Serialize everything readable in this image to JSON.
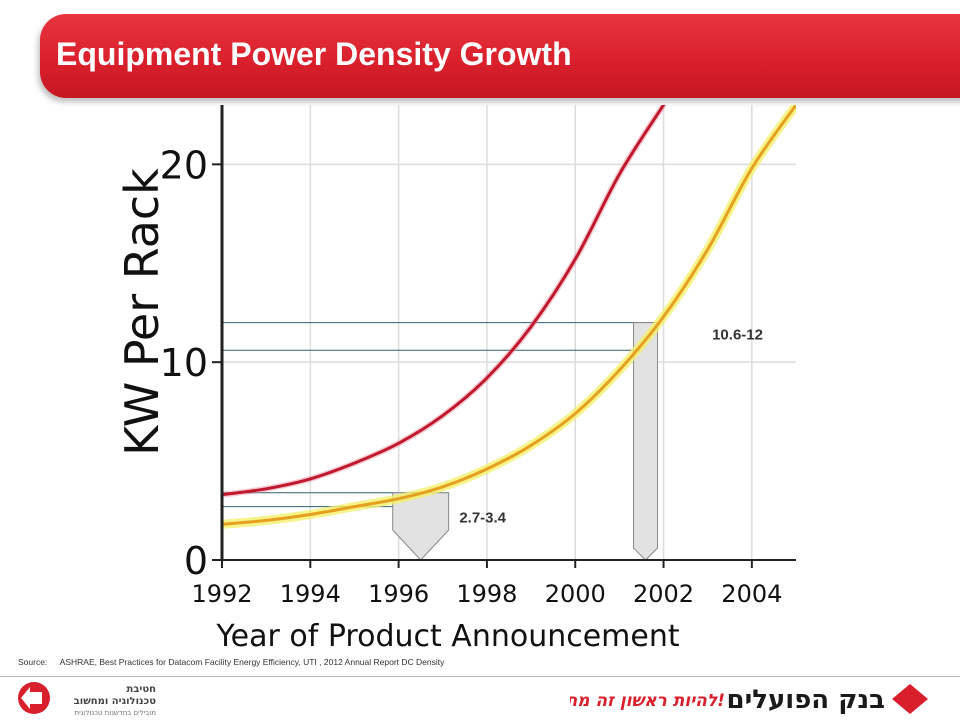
{
  "title": "Equipment Power Density Growth",
  "source": {
    "label": "Source:",
    "text": "ASHRAE, Best Practices for Datacom Facility Energy Efficiency, UTI , 2012 Annual Report DC Density"
  },
  "logos": {
    "left_line1": "חטיבת",
    "left_line2": "טכנולוגיה ומחשוב",
    "left_line3": "מובילים בחדשנות טכנולוגית",
    "right_slogan": "להיות ראשון זה מחייב!",
    "right_name": "בנק הפועלים"
  },
  "colors": {
    "brand_red": "#d81f2b",
    "series_upper": "#c0182e",
    "series_lower": "#e6a020",
    "lower_glow": "#f4f06a",
    "marker": "#33606f"
  },
  "chart_data": {
    "type": "line",
    "title": "",
    "xlabel": "Year of Product Announcement",
    "ylabel": "KW Per Rack",
    "xlim": [
      1992,
      2005
    ],
    "ylim": [
      0,
      23
    ],
    "xticks": [
      1992,
      1994,
      1996,
      1998,
      2000,
      2002,
      2004
    ],
    "yticks": [
      0,
      10,
      20
    ],
    "grid": true,
    "series": [
      {
        "x": [
          1992,
          1993,
          1994,
          1995,
          1996,
          1997,
          1998,
          1999,
          2000,
          2001,
          2002
        ],
        "values": [
          3.3,
          3.6,
          4.1,
          4.9,
          5.9,
          7.3,
          9.2,
          11.8,
          15.2,
          19.5,
          23
        ]
      },
      {
        "x": [
          1992,
          1993,
          1994,
          1995,
          1996,
          1997,
          1998,
          1999,
          2000,
          2001,
          2002,
          2003,
          2004,
          2005
        ],
        "values": [
          1.8,
          2.0,
          2.3,
          2.7,
          3.1,
          3.7,
          4.6,
          5.8,
          7.4,
          9.6,
          12.3,
          15.7,
          19.8,
          23
        ]
      }
    ],
    "annotations": [
      {
        "label": "2.7-3.4",
        "year": 1996.5,
        "low": 2.7,
        "high": 3.4
      },
      {
        "label": "10.6-12",
        "year": 2002,
        "low": 10.6,
        "high": 12
      }
    ]
  }
}
